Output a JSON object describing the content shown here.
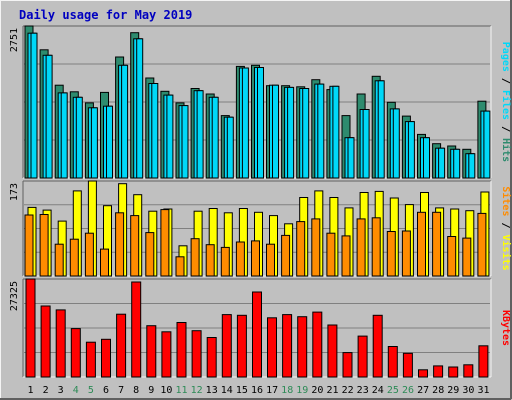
{
  "chart_data": [
    {
      "type": "bar",
      "title": "Daily usage for May 2019",
      "categories": [
        "1",
        "2",
        "3",
        "4",
        "5",
        "6",
        "7",
        "8",
        "9",
        "10",
        "11",
        "12",
        "13",
        "14",
        "15",
        "16",
        "17",
        "18",
        "19",
        "20",
        "21",
        "22",
        "23",
        "24",
        "25",
        "26",
        "27",
        "28",
        "29",
        "30",
        "31"
      ],
      "weekend_days": [
        "4",
        "5",
        "11",
        "12",
        "18",
        "19",
        "25",
        "26"
      ],
      "ylabel_parts": [
        "Pages",
        "Files",
        "Hits"
      ],
      "ymax_label": "2751",
      "ylim": [
        0,
        2751
      ],
      "grid": true,
      "series": [
        {
          "name": "Hits",
          "color": "#2e8b6e",
          "values": [
            2751,
            2320,
            1680,
            1560,
            1360,
            1550,
            2190,
            2630,
            1810,
            1570,
            1360,
            1620,
            1520,
            1130,
            2020,
            2040,
            1670,
            1670,
            1650,
            1780,
            1600,
            1130,
            1520,
            1840,
            1370,
            1120,
            790,
            620,
            580,
            520,
            1390
          ]
        },
        {
          "name": "Files",
          "color": "#00d8f8",
          "values": [
            2620,
            2220,
            1540,
            1460,
            1270,
            1300,
            2040,
            2520,
            1710,
            1500,
            1310,
            1580,
            1460,
            1100,
            1990,
            2000,
            1680,
            1640,
            1620,
            1700,
            1660,
            730,
            1240,
            1760,
            1250,
            1020,
            730,
            540,
            520,
            440,
            1210
          ]
        },
        {
          "name": "Pages",
          "color": "#00d8f8",
          "values": [
            2620,
            2220,
            1540,
            1460,
            1270,
            1300,
            2040,
            2520,
            1710,
            1500,
            1310,
            1580,
            1460,
            1100,
            1990,
            2000,
            1680,
            1640,
            1620,
            1700,
            1660,
            730,
            1240,
            1760,
            1250,
            1020,
            730,
            540,
            520,
            440,
            1210
          ]
        }
      ]
    },
    {
      "type": "bar",
      "ylabel_parts": [
        "Sites",
        "Visits"
      ],
      "ymax_label": "173",
      "ylim": [
        0,
        173
      ],
      "grid": true,
      "series": [
        {
          "name": "Visits",
          "color": "#ffff00",
          "values": [
            125,
            120,
            100,
            155,
            173,
            128,
            168,
            148,
            118,
            122,
            55,
            118,
            123,
            115,
            123,
            116,
            110,
            95,
            143,
            155,
            143,
            124,
            152,
            154,
            142,
            130,
            152,
            124,
            122,
            119,
            153
          ]
        },
        {
          "name": "Sites",
          "color": "#ff8c00",
          "values": [
            111,
            112,
            58,
            67,
            78,
            49,
            115,
            110,
            79,
            121,
            35,
            68,
            57,
            52,
            62,
            64,
            58,
            74,
            99,
            104,
            78,
            73,
            104,
            106,
            81,
            82,
            116,
            116,
            72,
            69,
            114
          ]
        }
      ]
    },
    {
      "type": "bar",
      "ylabel_parts": [
        "KBytes"
      ],
      "ymax_label": "27325",
      "ylim": [
        0,
        27325
      ],
      "grid": true,
      "series": [
        {
          "name": "KBytes",
          "color": "#ff0000",
          "values": [
            27325,
            19800,
            18700,
            13500,
            9700,
            10500,
            17500,
            26500,
            14300,
            12600,
            15200,
            12900,
            11000,
            17400,
            17200,
            23700,
            16500,
            17400,
            16800,
            18100,
            14500,
            6800,
            11400,
            17200,
            8500,
            6600,
            2000,
            3100,
            2800,
            3400,
            8700
          ]
        }
      ]
    }
  ]
}
